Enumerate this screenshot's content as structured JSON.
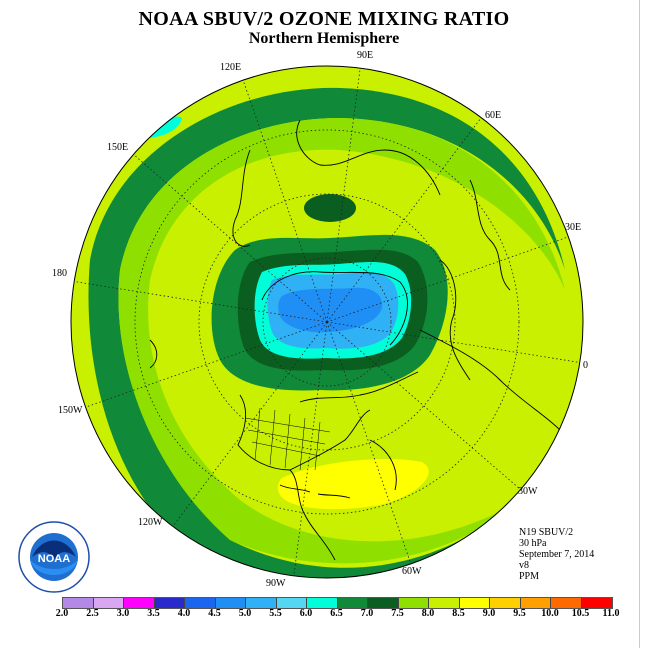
{
  "title": "NOAA SBUV/2 OZONE MIXING RATIO",
  "subtitle": "Northern Hemisphere",
  "longitude_labels": [
    "90E",
    "60E",
    "30E",
    "0",
    "30W",
    "60W",
    "90W",
    "120W",
    "150W",
    "180",
    "150E",
    "120E"
  ],
  "info": {
    "satellite": "N19 SBUV/2",
    "level": "30 hPa",
    "date": "September 7, 2014",
    "version": "v8",
    "units": "PPM"
  },
  "colorbar": {
    "ticks": [
      "2.0",
      "2.5",
      "3.0",
      "3.5",
      "4.0",
      "4.5",
      "5.0",
      "5.5",
      "6.0",
      "6.5",
      "7.0",
      "7.5",
      "8.0",
      "8.5",
      "9.0",
      "9.5",
      "10.0",
      "10.5",
      "11.0"
    ],
    "colors": [
      "#b388e6",
      "#d9a6f2",
      "#ff00ff",
      "#2a2acc",
      "#1a66ee",
      "#1f8ff5",
      "#30b0f5",
      "#55d6f2",
      "#00ffd8",
      "#108a38",
      "#0a5e1f",
      "#8fe000",
      "#c8f000",
      "#ffff00",
      "#ffd000",
      "#ffa000",
      "#ff6a00",
      "#ff0000",
      "#8a4a2a"
    ]
  },
  "logo_text": "NOAA"
}
